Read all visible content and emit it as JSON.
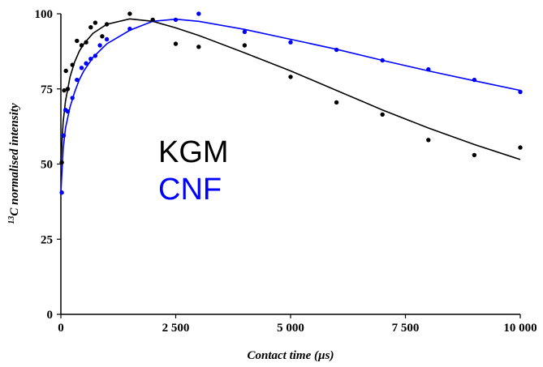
{
  "chart_data": {
    "type": "scatter",
    "title": "",
    "xlabel": "Contact time (µs)",
    "ylabel_prefix": "13",
    "ylabel": "C normalised intensity",
    "xlim": [
      0,
      10000
    ],
    "ylim": [
      0,
      100
    ],
    "xticks": [
      0,
      2500,
      5000,
      7500,
      10000
    ],
    "xtick_labels": [
      "0",
      "2 500",
      "5 000",
      "7 500",
      "10 000"
    ],
    "yticks": [
      0,
      25,
      50,
      75,
      100
    ],
    "ytick_labels": [
      "0",
      "25",
      "50",
      "75",
      "100"
    ],
    "grid": false,
    "legend_position": "center-left",
    "series": [
      {
        "name": "KGM",
        "color": "#000000",
        "points": [
          [
            20,
            50.5
          ],
          [
            70,
            74.5
          ],
          [
            110,
            81
          ],
          [
            150,
            75
          ],
          [
            250,
            83
          ],
          [
            350,
            91
          ],
          [
            450,
            89.5
          ],
          [
            550,
            90.5
          ],
          [
            650,
            95.5
          ],
          [
            750,
            97
          ],
          [
            900,
            92.5
          ],
          [
            1000,
            96.5
          ],
          [
            1500,
            100
          ],
          [
            2000,
            98
          ],
          [
            2500,
            90
          ],
          [
            3000,
            89
          ],
          [
            4000,
            89.5
          ],
          [
            5000,
            79
          ],
          [
            6000,
            70.5
          ],
          [
            7000,
            66.5
          ],
          [
            8000,
            58
          ],
          [
            9000,
            53
          ],
          [
            10000,
            55.5
          ]
        ],
        "fit": [
          [
            0,
            50.5
          ],
          [
            50,
            64
          ],
          [
            100,
            71
          ],
          [
            200,
            79
          ],
          [
            300,
            84
          ],
          [
            400,
            87.5
          ],
          [
            500,
            90
          ],
          [
            700,
            93.5
          ],
          [
            1000,
            96.5
          ],
          [
            1500,
            98.3
          ],
          [
            2000,
            97.5
          ],
          [
            2500,
            95.3
          ],
          [
            3000,
            92.8
          ],
          [
            4000,
            87
          ],
          [
            5000,
            81
          ],
          [
            6000,
            74.5
          ],
          [
            7000,
            68
          ],
          [
            8000,
            62
          ],
          [
            9000,
            56.5
          ],
          [
            10000,
            51.5
          ]
        ]
      },
      {
        "name": "CNF",
        "color": "#0000ff",
        "points": [
          [
            20,
            40.5
          ],
          [
            60,
            59.5
          ],
          [
            100,
            68
          ],
          [
            150,
            67.5
          ],
          [
            250,
            72
          ],
          [
            350,
            78
          ],
          [
            450,
            82
          ],
          [
            550,
            83.5
          ],
          [
            650,
            85
          ],
          [
            750,
            86
          ],
          [
            850,
            89.5
          ],
          [
            1000,
            91.5
          ],
          [
            1500,
            95
          ],
          [
            2500,
            98
          ],
          [
            3000,
            100
          ],
          [
            4000,
            94
          ],
          [
            5000,
            90.5
          ],
          [
            6000,
            88
          ],
          [
            7000,
            84.5
          ],
          [
            8000,
            81.5
          ],
          [
            9000,
            78
          ],
          [
            10000,
            74
          ]
        ],
        "fit": [
          [
            0,
            40.5
          ],
          [
            50,
            55
          ],
          [
            100,
            62
          ],
          [
            200,
            69
          ],
          [
            300,
            74
          ],
          [
            400,
            78
          ],
          [
            500,
            81
          ],
          [
            700,
            85.5
          ],
          [
            1000,
            90
          ],
          [
            1500,
            94.5
          ],
          [
            2000,
            97.5
          ],
          [
            2500,
            98.2
          ],
          [
            3000,
            97.5
          ],
          [
            4000,
            94.8
          ],
          [
            5000,
            91.5
          ],
          [
            6000,
            88.2
          ],
          [
            7000,
            84.5
          ],
          [
            8000,
            81
          ],
          [
            9000,
            77.7
          ],
          [
            10000,
            74.5
          ]
        ]
      }
    ]
  }
}
